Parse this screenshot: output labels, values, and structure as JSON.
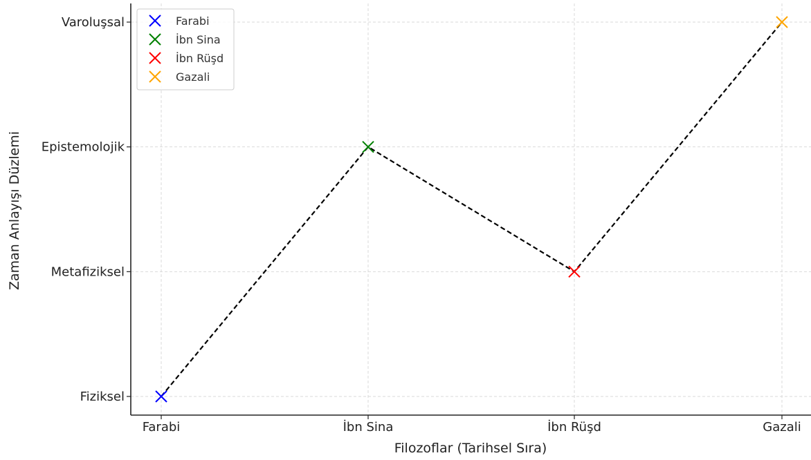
{
  "chart_data": {
    "type": "line",
    "xlabel": "Filozoflar (Tarihsel Sıra)",
    "ylabel": "Zaman Anlayışı Düzlemi",
    "categories": [
      "Farabi",
      "İbn Sina",
      "İbn Rüşd",
      "Gazali"
    ],
    "y_categories": [
      "Fiziksel",
      "Metafiziksel",
      "Epistemolojik",
      "Varoluşsal"
    ],
    "points": [
      {
        "x": "Farabi",
        "y": "Fiziksel",
        "color": "#0000ff"
      },
      {
        "x": "İbn Sina",
        "y": "Epistemolojik",
        "color": "#008000"
      },
      {
        "x": "İbn Rüşd",
        "y": "Metafiziksel",
        "color": "#ff0000"
      },
      {
        "x": "Gazali",
        "y": "Varoluşsal",
        "color": "#ffa500"
      }
    ],
    "line": {
      "style": "dashed",
      "color": "#000000"
    },
    "marker": "x",
    "legend": {
      "position": "top-left",
      "entries": [
        "Farabi",
        "İbn Sina",
        "İbn Rüşd",
        "Gazali"
      ]
    },
    "grid": true
  }
}
